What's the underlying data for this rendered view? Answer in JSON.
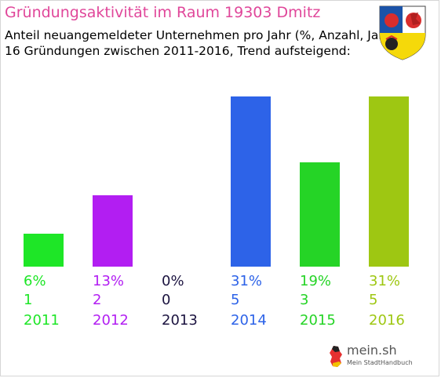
{
  "header": {
    "title": "Gründungsaktivität im Raum 19303 Dmitz",
    "subtitle_line1": "Anteil neuangemeldeter Unternehmen pro Jahr (%, Anzahl, Jahr)",
    "subtitle_line2": "16 Gründungen zwischen 2011-2016, Trend aufsteigend:"
  },
  "crest_icon": "coat-of-arms-icon",
  "logo": {
    "name": "mein.sh",
    "tagline": "Mein StadtHandbuch",
    "icon": "germany-map-icon"
  },
  "chart_data": {
    "type": "bar",
    "title": "Gründungsaktivität im Raum 19303 Dmitz",
    "categories": [
      "2011",
      "2012",
      "2013",
      "2014",
      "2015",
      "2016"
    ],
    "series": [
      {
        "values": [
          6,
          13,
          0,
          31,
          19,
          31
        ]
      }
    ],
    "counts": [
      1,
      2,
      0,
      5,
      3,
      5
    ],
    "percent_labels": [
      "6%",
      "13%",
      "0%",
      "31%",
      "19%",
      "31%"
    ],
    "count_labels": [
      "1",
      "2",
      "0",
      "5",
      "3",
      "5"
    ],
    "colors": [
      "#1ee627",
      "#b21ef2",
      "#1c1440",
      "#2d63e8",
      "#25d426",
      "#9ec712"
    ],
    "ylim": [
      0,
      31
    ],
    "grid": false,
    "legend": "none"
  }
}
